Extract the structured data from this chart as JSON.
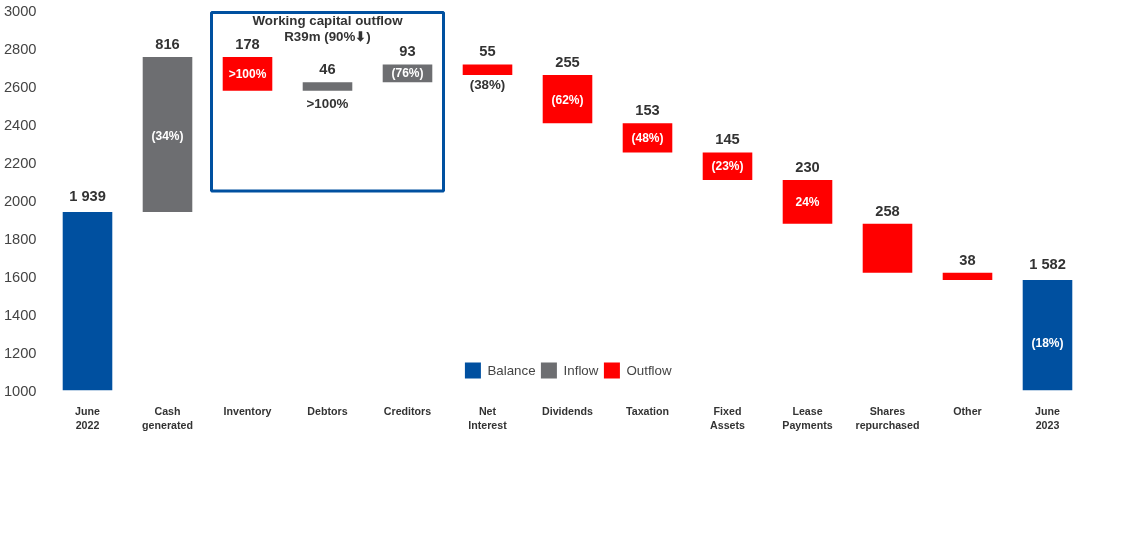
{
  "chart_data": {
    "type": "bar",
    "categories": [
      "June 2022",
      "Cash generated",
      "Inventory",
      "Debtors",
      "Creditors",
      "Net Interest",
      "Dividends",
      "Taxation",
      "Fixed Assets",
      "Lease Payments",
      "Shares repurchased",
      "Other",
      "June 2023"
    ],
    "series": [
      {
        "name": "Balance",
        "color": "#0050a0",
        "values": [
          1939,
          null,
          null,
          null,
          null,
          null,
          null,
          null,
          null,
          null,
          null,
          null,
          1582
        ],
        "value_labels": [
          "1 939",
          null,
          null,
          null,
          null,
          null,
          null,
          null,
          null,
          null,
          null,
          null,
          "1 582"
        ]
      },
      {
        "name": "Inflow",
        "color": "#6d6e71",
        "base": [
          null,
          1939,
          null,
          2577,
          2623,
          null,
          null,
          null,
          null,
          null,
          null,
          null,
          null
        ],
        "values": [
          null,
          816,
          null,
          46,
          93,
          null,
          null,
          null,
          null,
          null,
          null,
          null,
          null
        ],
        "value_labels": [
          null,
          "816",
          null,
          "46",
          "93",
          null,
          null,
          null,
          null,
          null,
          null,
          null,
          null
        ]
      },
      {
        "name": "Outflow",
        "color": "#ff0000",
        "base": [
          null,
          null,
          2577,
          null,
          null,
          2661,
          2406,
          2253,
          2108,
          1878,
          1620,
          1582,
          null
        ],
        "values": [
          null,
          null,
          178,
          null,
          null,
          55,
          255,
          153,
          145,
          230,
          258,
          38,
          null
        ],
        "value_labels": [
          null,
          null,
          "178",
          null,
          null,
          "55",
          "255",
          "153",
          "145",
          "230",
          "258",
          "38",
          null
        ]
      }
    ],
    "ylim": [
      1000,
      3000
    ],
    "yticks": [
      1000,
      1200,
      1400,
      1600,
      1800,
      2000,
      2200,
      2400,
      2600,
      2800,
      3000
    ],
    "legend": "bottom",
    "annotations": [
      "Working capital outflow",
      "R39m (90%⬇)",
      "(34%)",
      ">100%",
      ">100%",
      "(76%)",
      "(38%)",
      "(62%)",
      "(48%)",
      "(23%)",
      "24%",
      "(18%)"
    ]
  }
}
